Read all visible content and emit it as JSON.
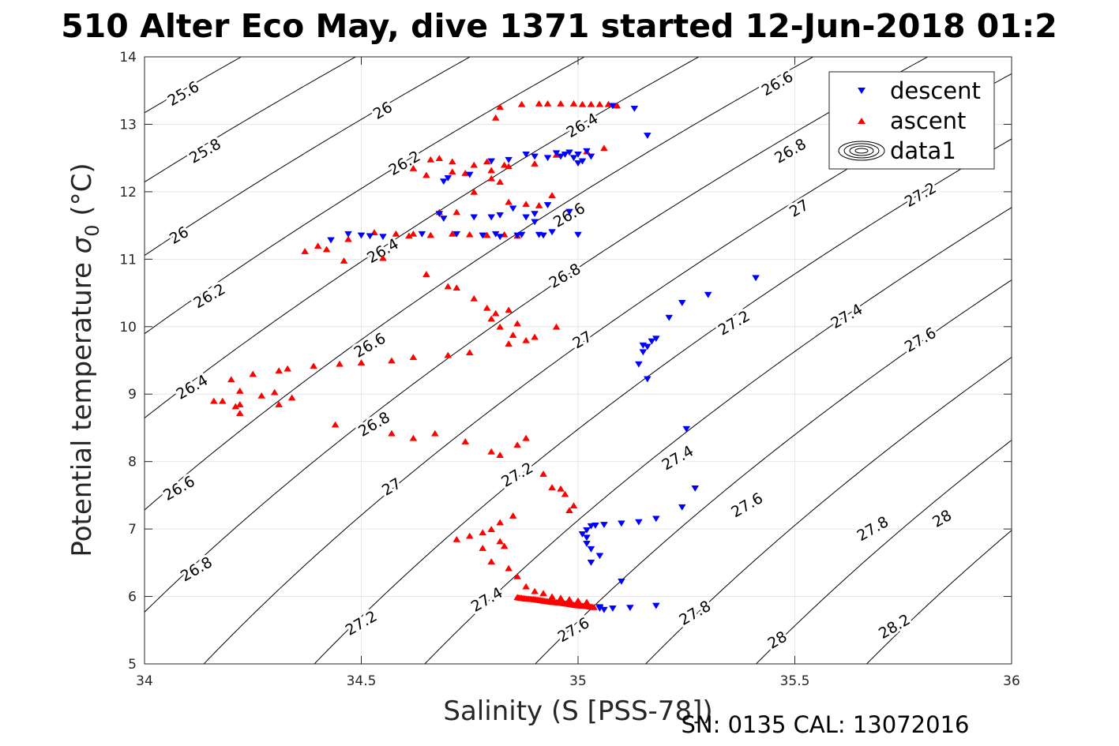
{
  "title": "510 Alter Eco May, dive 1371 started 12-Jun-2018 01:2",
  "footer": "SN: 0135  CAL: 13072016",
  "chart_data": {
    "type": "scatter",
    "title": "510 Alter Eco May, dive 1371 started 12-Jun-2018 01:2",
    "xlabel": "Salinity (S [PSS-78])",
    "ylabel_main": "Potential temperature ",
    "ylabel_sigma": "σ",
    "ylabel_sub": "0",
    "ylabel_unit": " (°C)",
    "xlim": [
      34,
      36
    ],
    "ylim": [
      5,
      14
    ],
    "xticks": [
      34,
      34.5,
      35,
      35.5,
      36
    ],
    "xtick_labels": [
      "34",
      "34.5",
      "35",
      "35.5",
      "36"
    ],
    "yticks": [
      5,
      6,
      7,
      8,
      9,
      10,
      11,
      12,
      13,
      14
    ],
    "ytick_labels": [
      "5",
      "6",
      "7",
      "8",
      "9",
      "10",
      "11",
      "12",
      "13",
      "14"
    ],
    "grid": true,
    "legend_position": "top-right",
    "legend": [
      {
        "name": "descent",
        "marker": "triangle-down",
        "color": "#0000ff"
      },
      {
        "name": "ascent",
        "marker": "triangle-up",
        "color": "#ff0000"
      },
      {
        "name": "data1",
        "marker": "contour",
        "color": "#000000"
      }
    ],
    "contour_levels": [
      25.6,
      25.8,
      26,
      26.2,
      26.4,
      26.6,
      26.8,
      27,
      27.2,
      27.4,
      27.6,
      27.8,
      28,
      28.2
    ],
    "contour_labels": [
      {
        "text": "25.6",
        "x": 34.09,
        "y": 13.45
      },
      {
        "text": "25.8",
        "x": 34.14,
        "y": 12.6
      },
      {
        "text": "26",
        "x": 34.08,
        "y": 11.35
      },
      {
        "text": "26.2",
        "x": 34.15,
        "y": 10.45
      },
      {
        "text": "26.4",
        "x": 34.11,
        "y": 9.1
      },
      {
        "text": "26.6",
        "x": 34.08,
        "y": 7.6
      },
      {
        "text": "26.8",
        "x": 34.12,
        "y": 6.4
      },
      {
        "text": "26",
        "x": 34.55,
        "y": 13.2
      },
      {
        "text": "26.2",
        "x": 34.6,
        "y": 12.42
      },
      {
        "text": "26.4",
        "x": 34.55,
        "y": 11.12
      },
      {
        "text": "26.6",
        "x": 34.52,
        "y": 9.72
      },
      {
        "text": "26.8",
        "x": 34.53,
        "y": 8.55
      },
      {
        "text": "27",
        "x": 34.57,
        "y": 7.62
      },
      {
        "text": "27.2",
        "x": 34.5,
        "y": 5.6
      },
      {
        "text": "26.4",
        "x": 35.01,
        "y": 12.98
      },
      {
        "text": "26.6",
        "x": 34.98,
        "y": 11.65
      },
      {
        "text": "26.8",
        "x": 34.97,
        "y": 10.75
      },
      {
        "text": "27",
        "x": 35.01,
        "y": 9.8
      },
      {
        "text": "27.2",
        "x": 34.86,
        "y": 7.8
      },
      {
        "text": "27.4",
        "x": 34.79,
        "y": 5.95
      },
      {
        "text": "27.6",
        "x": 34.99,
        "y": 5.5
      },
      {
        "text": "27.4",
        "x": 35.23,
        "y": 8.05
      },
      {
        "text": "27.2",
        "x": 35.36,
        "y": 10.05
      },
      {
        "text": "26.6",
        "x": 35.46,
        "y": 13.6
      },
      {
        "text": "26.8",
        "x": 35.49,
        "y": 12.6
      },
      {
        "text": "27",
        "x": 35.51,
        "y": 11.75
      },
      {
        "text": "27.4",
        "x": 35.62,
        "y": 10.15
      },
      {
        "text": "27.6",
        "x": 35.79,
        "y": 9.8
      },
      {
        "text": "27.2",
        "x": 35.79,
        "y": 11.95
      },
      {
        "text": "27.6",
        "x": 35.39,
        "y": 7.35
      },
      {
        "text": "27.8",
        "x": 35.27,
        "y": 5.75
      },
      {
        "text": "27.8",
        "x": 35.68,
        "y": 7.0
      },
      {
        "text": "28",
        "x": 35.84,
        "y": 7.15
      },
      {
        "text": "28",
        "x": 35.46,
        "y": 5.35
      },
      {
        "text": "28.2",
        "x": 35.73,
        "y": 5.55
      }
    ],
    "series": [
      {
        "name": "descent",
        "color": "#0000ff",
        "x": [
          35.08,
          35.13,
          35.16,
          35.02,
          35.0,
          35.03,
          34.99,
          35.01,
          34.97,
          34.95,
          34.93,
          34.98,
          34.96,
          35.0,
          34.9,
          34.88,
          34.8,
          34.84,
          34.75,
          34.7,
          34.69,
          34.68,
          34.93,
          34.85,
          34.88,
          34.98,
          34.9,
          34.8,
          34.82,
          34.69,
          34.76,
          34.9,
          34.94,
          34.78,
          34.82,
          34.92,
          34.86,
          35.0,
          34.47,
          34.5,
          34.52,
          34.55,
          34.43,
          34.64,
          34.72,
          34.81,
          34.87,
          34.91,
          35.41,
          35.3,
          35.24,
          35.21,
          35.18,
          35.17,
          35.15,
          35.16,
          35.14,
          35.15,
          35.16,
          35.25,
          35.27,
          35.24,
          35.18,
          35.14,
          35.1,
          35.06,
          35.04,
          35.03,
          35.02,
          35.01,
          35.02,
          35.02,
          35.03,
          35.05,
          35.03,
          35.1,
          35.05,
          35.05,
          35.06,
          35.08,
          35.12,
          35.18
        ],
        "y": [
          13.27,
          13.23,
          12.83,
          12.6,
          12.55,
          12.52,
          12.5,
          12.45,
          12.55,
          12.57,
          12.5,
          12.58,
          12.52,
          12.42,
          12.52,
          12.55,
          12.45,
          12.47,
          12.25,
          12.2,
          12.15,
          11.67,
          11.8,
          11.75,
          11.62,
          11.7,
          11.55,
          11.62,
          11.65,
          11.6,
          11.62,
          11.67,
          11.4,
          11.35,
          11.33,
          11.35,
          11.35,
          11.36,
          11.37,
          11.35,
          11.34,
          11.33,
          11.28,
          11.37,
          11.37,
          11.37,
          11.36,
          11.36,
          10.72,
          10.47,
          10.35,
          10.13,
          9.82,
          9.78,
          9.72,
          9.22,
          9.44,
          9.62,
          9.7,
          8.48,
          7.6,
          7.32,
          7.15,
          7.1,
          7.08,
          7.06,
          7.05,
          7.04,
          6.98,
          6.92,
          6.87,
          6.78,
          6.7,
          6.6,
          6.5,
          6.22,
          5.84,
          5.82,
          5.8,
          5.82,
          5.83,
          5.86
        ]
      },
      {
        "name": "ascent",
        "color": "#ff0000",
        "x": [
          34.82,
          34.87,
          34.91,
          34.93,
          34.96,
          34.99,
          35.01,
          35.03,
          35.05,
          35.07,
          35.09,
          34.81,
          34.66,
          34.71,
          34.68,
          34.76,
          34.79,
          34.84,
          34.8,
          34.83,
          34.9,
          34.95,
          35.02,
          35.06,
          34.62,
          34.65,
          34.71,
          34.74,
          34.8,
          34.82,
          34.76,
          34.84,
          34.88,
          34.91,
          34.94,
          34.72,
          34.68,
          34.62,
          34.58,
          34.53,
          34.47,
          34.42,
          34.37,
          34.4,
          34.46,
          34.55,
          34.61,
          34.66,
          34.71,
          34.75,
          34.79,
          34.83,
          34.86,
          34.65,
          34.7,
          34.72,
          34.76,
          34.79,
          34.8,
          34.82,
          34.85,
          34.84,
          34.88,
          34.9,
          34.95,
          34.81,
          34.84,
          34.86,
          34.75,
          34.7,
          34.62,
          34.57,
          34.5,
          34.45,
          34.39,
          34.33,
          34.31,
          34.25,
          34.2,
          34.18,
          34.22,
          34.27,
          34.3,
          34.34,
          34.31,
          34.16,
          34.22,
          34.21,
          34.22,
          34.44,
          34.57,
          34.62,
          34.67,
          34.74,
          34.8,
          34.82,
          34.86,
          34.88,
          34.92,
          34.94,
          34.96,
          34.97,
          34.99,
          34.98,
          34.85,
          34.82,
          34.8,
          34.78,
          34.75,
          34.72,
          34.82,
          34.83,
          34.78,
          34.8,
          34.84,
          34.86,
          34.88,
          34.9,
          34.92,
          34.94,
          34.96,
          34.98,
          35.0,
          35.02
        ],
        "y": [
          13.26,
          13.3,
          13.31,
          13.31,
          13.31,
          13.31,
          13.3,
          13.3,
          13.3,
          13.3,
          13.28,
          13.1,
          12.48,
          12.45,
          12.5,
          12.4,
          12.45,
          12.38,
          12.32,
          12.4,
          12.42,
          12.55,
          12.6,
          12.65,
          12.35,
          12.25,
          12.3,
          12.28,
          12.2,
          12.15,
          12.0,
          11.85,
          11.82,
          11.8,
          11.95,
          11.7,
          11.7,
          11.38,
          11.38,
          11.4,
          11.3,
          11.15,
          11.12,
          11.2,
          10.98,
          11.02,
          11.35,
          11.36,
          11.38,
          11.37,
          11.36,
          11.37,
          11.35,
          10.78,
          10.6,
          10.58,
          10.42,
          10.28,
          10.12,
          10.0,
          9.88,
          9.75,
          9.8,
          9.85,
          10.0,
          10.2,
          10.25,
          10.05,
          9.62,
          9.58,
          9.55,
          9.5,
          9.47,
          9.45,
          9.42,
          9.38,
          9.35,
          9.3,
          9.22,
          8.9,
          9.05,
          8.98,
          9.03,
          8.95,
          8.85,
          8.9,
          8.85,
          8.82,
          8.72,
          8.55,
          8.42,
          8.35,
          8.42,
          8.3,
          8.15,
          8.1,
          8.25,
          8.35,
          7.82,
          7.62,
          7.6,
          7.52,
          7.35,
          7.28,
          7.2,
          7.1,
          7.0,
          6.95,
          6.9,
          6.85,
          6.82,
          6.75,
          6.72,
          6.52,
          6.42,
          6.3,
          6.15,
          6.08,
          6.05,
          6.0,
          5.98,
          5.96,
          5.94,
          5.92
        ]
      }
    ],
    "ascent_line_segment": {
      "x": [
        34.86,
        34.88,
        34.9,
        34.92,
        34.94,
        34.96,
        34.98,
        35.0,
        35.02,
        35.04
      ],
      "y": [
        5.99,
        5.97,
        5.96,
        5.94,
        5.92,
        5.91,
        5.89,
        5.87,
        5.86,
        5.84
      ]
    }
  }
}
